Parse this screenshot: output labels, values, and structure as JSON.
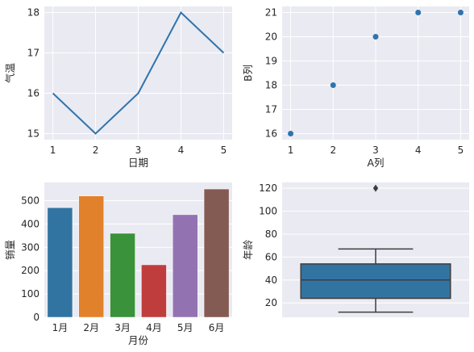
{
  "chart_data": [
    {
      "type": "line",
      "x": [
        1,
        2,
        3,
        4,
        5
      ],
      "y": [
        16,
        15,
        16,
        18,
        17
      ],
      "xlabel": "日期",
      "ylabel": "气温",
      "xticks": [
        "1",
        "2",
        "3",
        "4",
        "5"
      ],
      "yticks": [
        "15",
        "16",
        "17",
        "18"
      ],
      "xlim": [
        0.8,
        5.2
      ],
      "ylim": [
        14.85,
        18.15
      ],
      "color": "#2f74ad",
      "grid": true
    },
    {
      "type": "scatter",
      "x": [
        1,
        2,
        3,
        4,
        5
      ],
      "y": [
        16,
        18,
        20,
        21,
        21
      ],
      "xlabel": "A列",
      "ylabel": "B列",
      "xticks": [
        "1",
        "2",
        "3",
        "4",
        "5"
      ],
      "yticks": [
        "16",
        "17",
        "18",
        "19",
        "20",
        "21"
      ],
      "xlim": [
        0.8,
        5.2
      ],
      "ylim": [
        15.75,
        21.25
      ],
      "color": "#2f74ad",
      "grid": true
    },
    {
      "type": "bar",
      "categories": [
        "1月",
        "2月",
        "3月",
        "4月",
        "5月",
        "6月"
      ],
      "values": [
        470,
        520,
        360,
        225,
        440,
        550
      ],
      "colors": [
        "#3274a1",
        "#e1812c",
        "#3a923a",
        "#c03d3e",
        "#9372b2",
        "#845b53"
      ],
      "xlabel": "月份",
      "ylabel": "销量",
      "yticks": [
        "0",
        "100",
        "200",
        "300",
        "400",
        "500"
      ],
      "ylim": [
        0,
        578
      ],
      "grid": true
    },
    {
      "type": "box",
      "ylabel": "年龄",
      "xlabel": "",
      "whisker_low": 12,
      "q1": 24,
      "median": 40,
      "q3": 54,
      "whisker_high": 67,
      "outliers": [
        120
      ],
      "yticks": [
        "20",
        "40",
        "60",
        "80",
        "100",
        "120"
      ],
      "ylim": [
        7.5,
        125
      ],
      "color": "#3274a1",
      "grid": true
    }
  ]
}
